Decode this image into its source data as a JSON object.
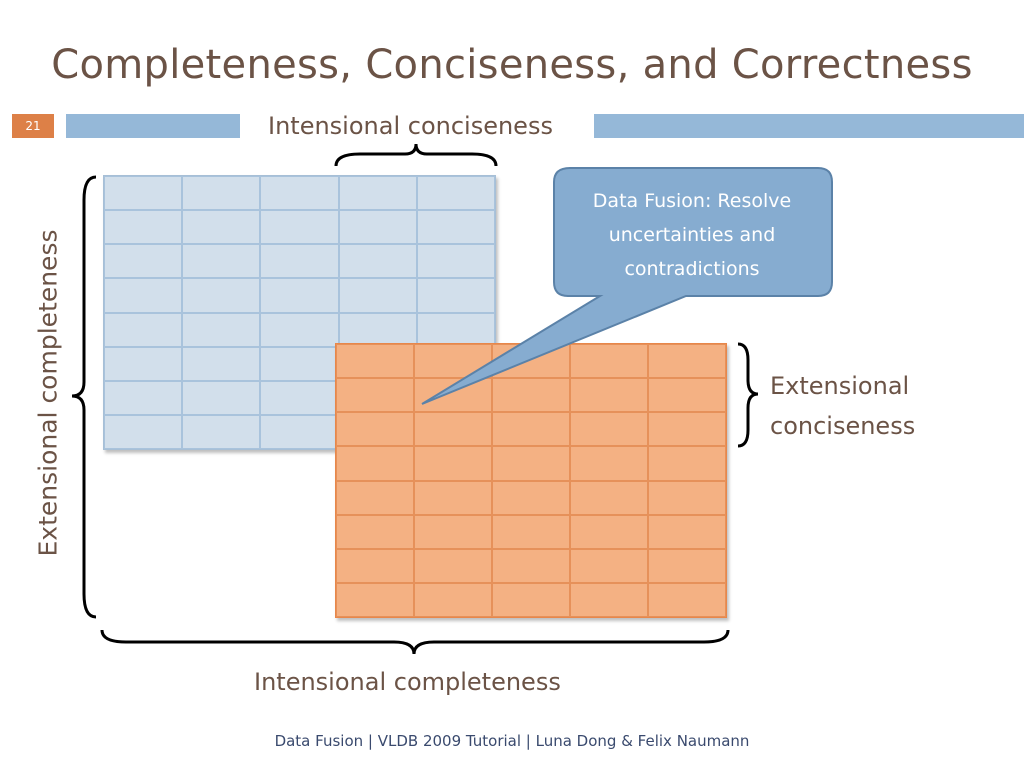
{
  "slide": {
    "title": "Completeness, Conciseness, and Correctness",
    "number": "21",
    "footer": "Data Fusion | VLDB 2009 Tutorial | Luna Dong & Felix Naumann"
  },
  "labels": {
    "intensional_conciseness": "Intensional conciseness",
    "extensional_completeness": "Extensional completeness",
    "extensional_conciseness_line1": "Extensional",
    "extensional_conciseness_line2": "conciseness",
    "intensional_completeness": "Intensional completeness"
  },
  "callout": {
    "text": "Data Fusion: Resolve uncertainties and contradictions"
  },
  "tables": {
    "blue": {
      "rows": 8,
      "cols": 5,
      "color": "#d2dfeb"
    },
    "orange": {
      "rows": 8,
      "cols": 5,
      "color": "#f4b183"
    }
  },
  "colors": {
    "accent_bar": "#95b8d8",
    "slide_number_bg": "#dd8047",
    "text": "#6b5346",
    "callout": "#86acd0"
  }
}
